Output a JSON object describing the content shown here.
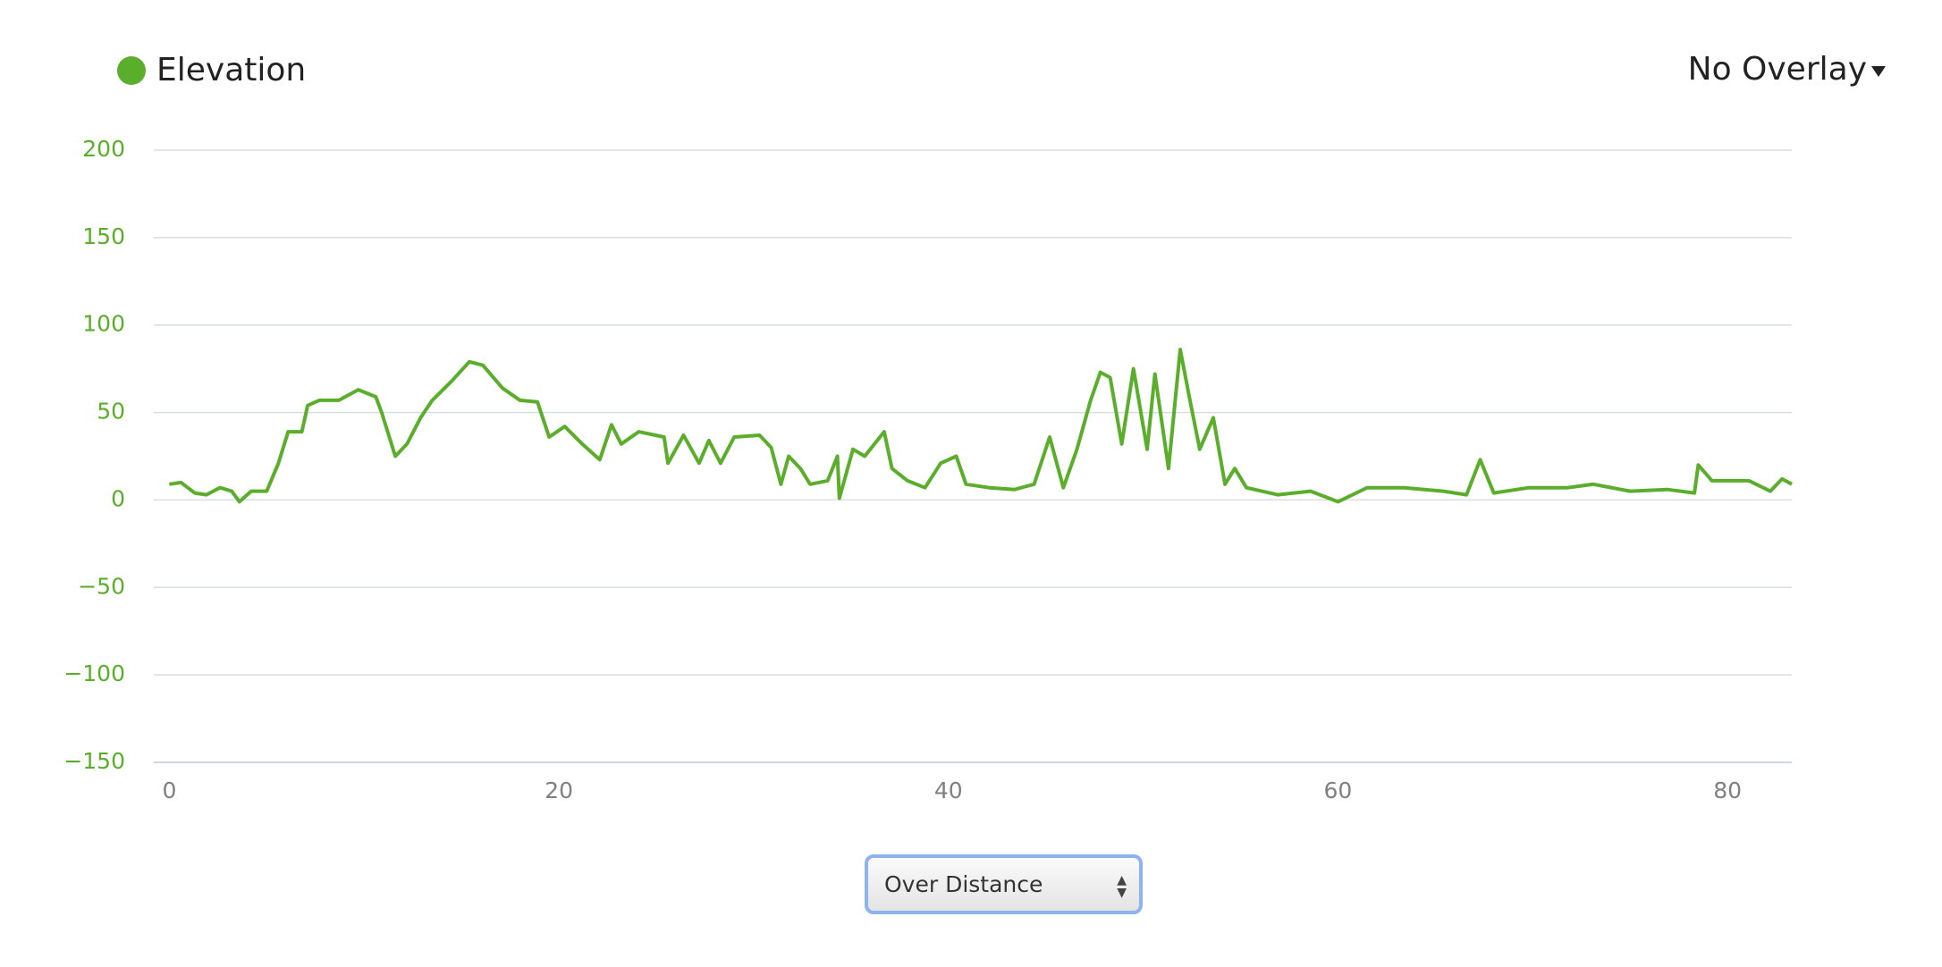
{
  "chart_data": {
    "type": "line",
    "series": [
      {
        "name": "Elevation",
        "color": "#5aae2b",
        "x": [
          0,
          0.6,
          1.3,
          1.9,
          2.6,
          3.2,
          3.6,
          4.2,
          5.0,
          5.6,
          6.1,
          6.8,
          7.1,
          7.7,
          8.7,
          9.7,
          10.6,
          10.9,
          11.6,
          12.2,
          12.9,
          13.5,
          14.5,
          15.4,
          16.1,
          17.1,
          18.0,
          18.9,
          19.5,
          20.3,
          21.2,
          22.1,
          22.7,
          23.2,
          24.1,
          25.4,
          25.6,
          26.4,
          27.2,
          27.7,
          28.3,
          29.0,
          30.3,
          30.9,
          31.4,
          31.8,
          32.4,
          32.9,
          33.8,
          34.3,
          34.4,
          35.1,
          35.7,
          36.7,
          37.1,
          37.9,
          38.8,
          39.6,
          40.4,
          40.9,
          42.1,
          43.4,
          44.4,
          45.2,
          45.9,
          46.6,
          47.3,
          47.8,
          48.3,
          48.9,
          49.5,
          50.2,
          50.6,
          51.3,
          51.9,
          52.4,
          52.9,
          53.6,
          54.2,
          54.7,
          55.3,
          56.9,
          58.6,
          60.0,
          61.5,
          63.4,
          65.4,
          66.6,
          67.3,
          68.0,
          69.8,
          71.8,
          73.1,
          75.0,
          76.9,
          78.3,
          78.5,
          79.2,
          81.1,
          82.2,
          82.8,
          83.3
        ],
        "values": [
          9,
          10,
          4,
          3,
          7,
          5,
          -1,
          5,
          5,
          21,
          39,
          39,
          54,
          57,
          57,
          63,
          59,
          50,
          25,
          32,
          47,
          57,
          68,
          79,
          77,
          64,
          57,
          56,
          36,
          42,
          32,
          23,
          43,
          32,
          39,
          36,
          21,
          37,
          21,
          34,
          21,
          36,
          37,
          30,
          9,
          25,
          18,
          9,
          11,
          25,
          1,
          29,
          25,
          39,
          18,
          11,
          7,
          21,
          25,
          9,
          7,
          6,
          9,
          36,
          7,
          29,
          57,
          73,
          70,
          32,
          75,
          29,
          72,
          18,
          86,
          57,
          29,
          47,
          9,
          18,
          7,
          3,
          5,
          -1,
          7,
          7,
          5,
          3,
          23,
          4,
          7,
          7,
          9,
          5,
          6,
          4,
          20,
          11,
          11,
          5,
          12,
          9
        ]
      }
    ],
    "xlim": [
      -0.8,
      83.3
    ],
    "xticks": [
      0,
      20,
      40,
      60,
      80
    ],
    "ylim": [
      -150,
      200
    ],
    "yticks": [
      {
        "value": -150,
        "label": "−150"
      },
      {
        "value": -100,
        "label": "−100"
      },
      {
        "value": -50,
        "label": "−50"
      },
      0,
      50,
      100,
      150,
      200
    ],
    "grid": true
  },
  "controls": {
    "overlay": "No Overlay",
    "mode": "Over Distance"
  }
}
